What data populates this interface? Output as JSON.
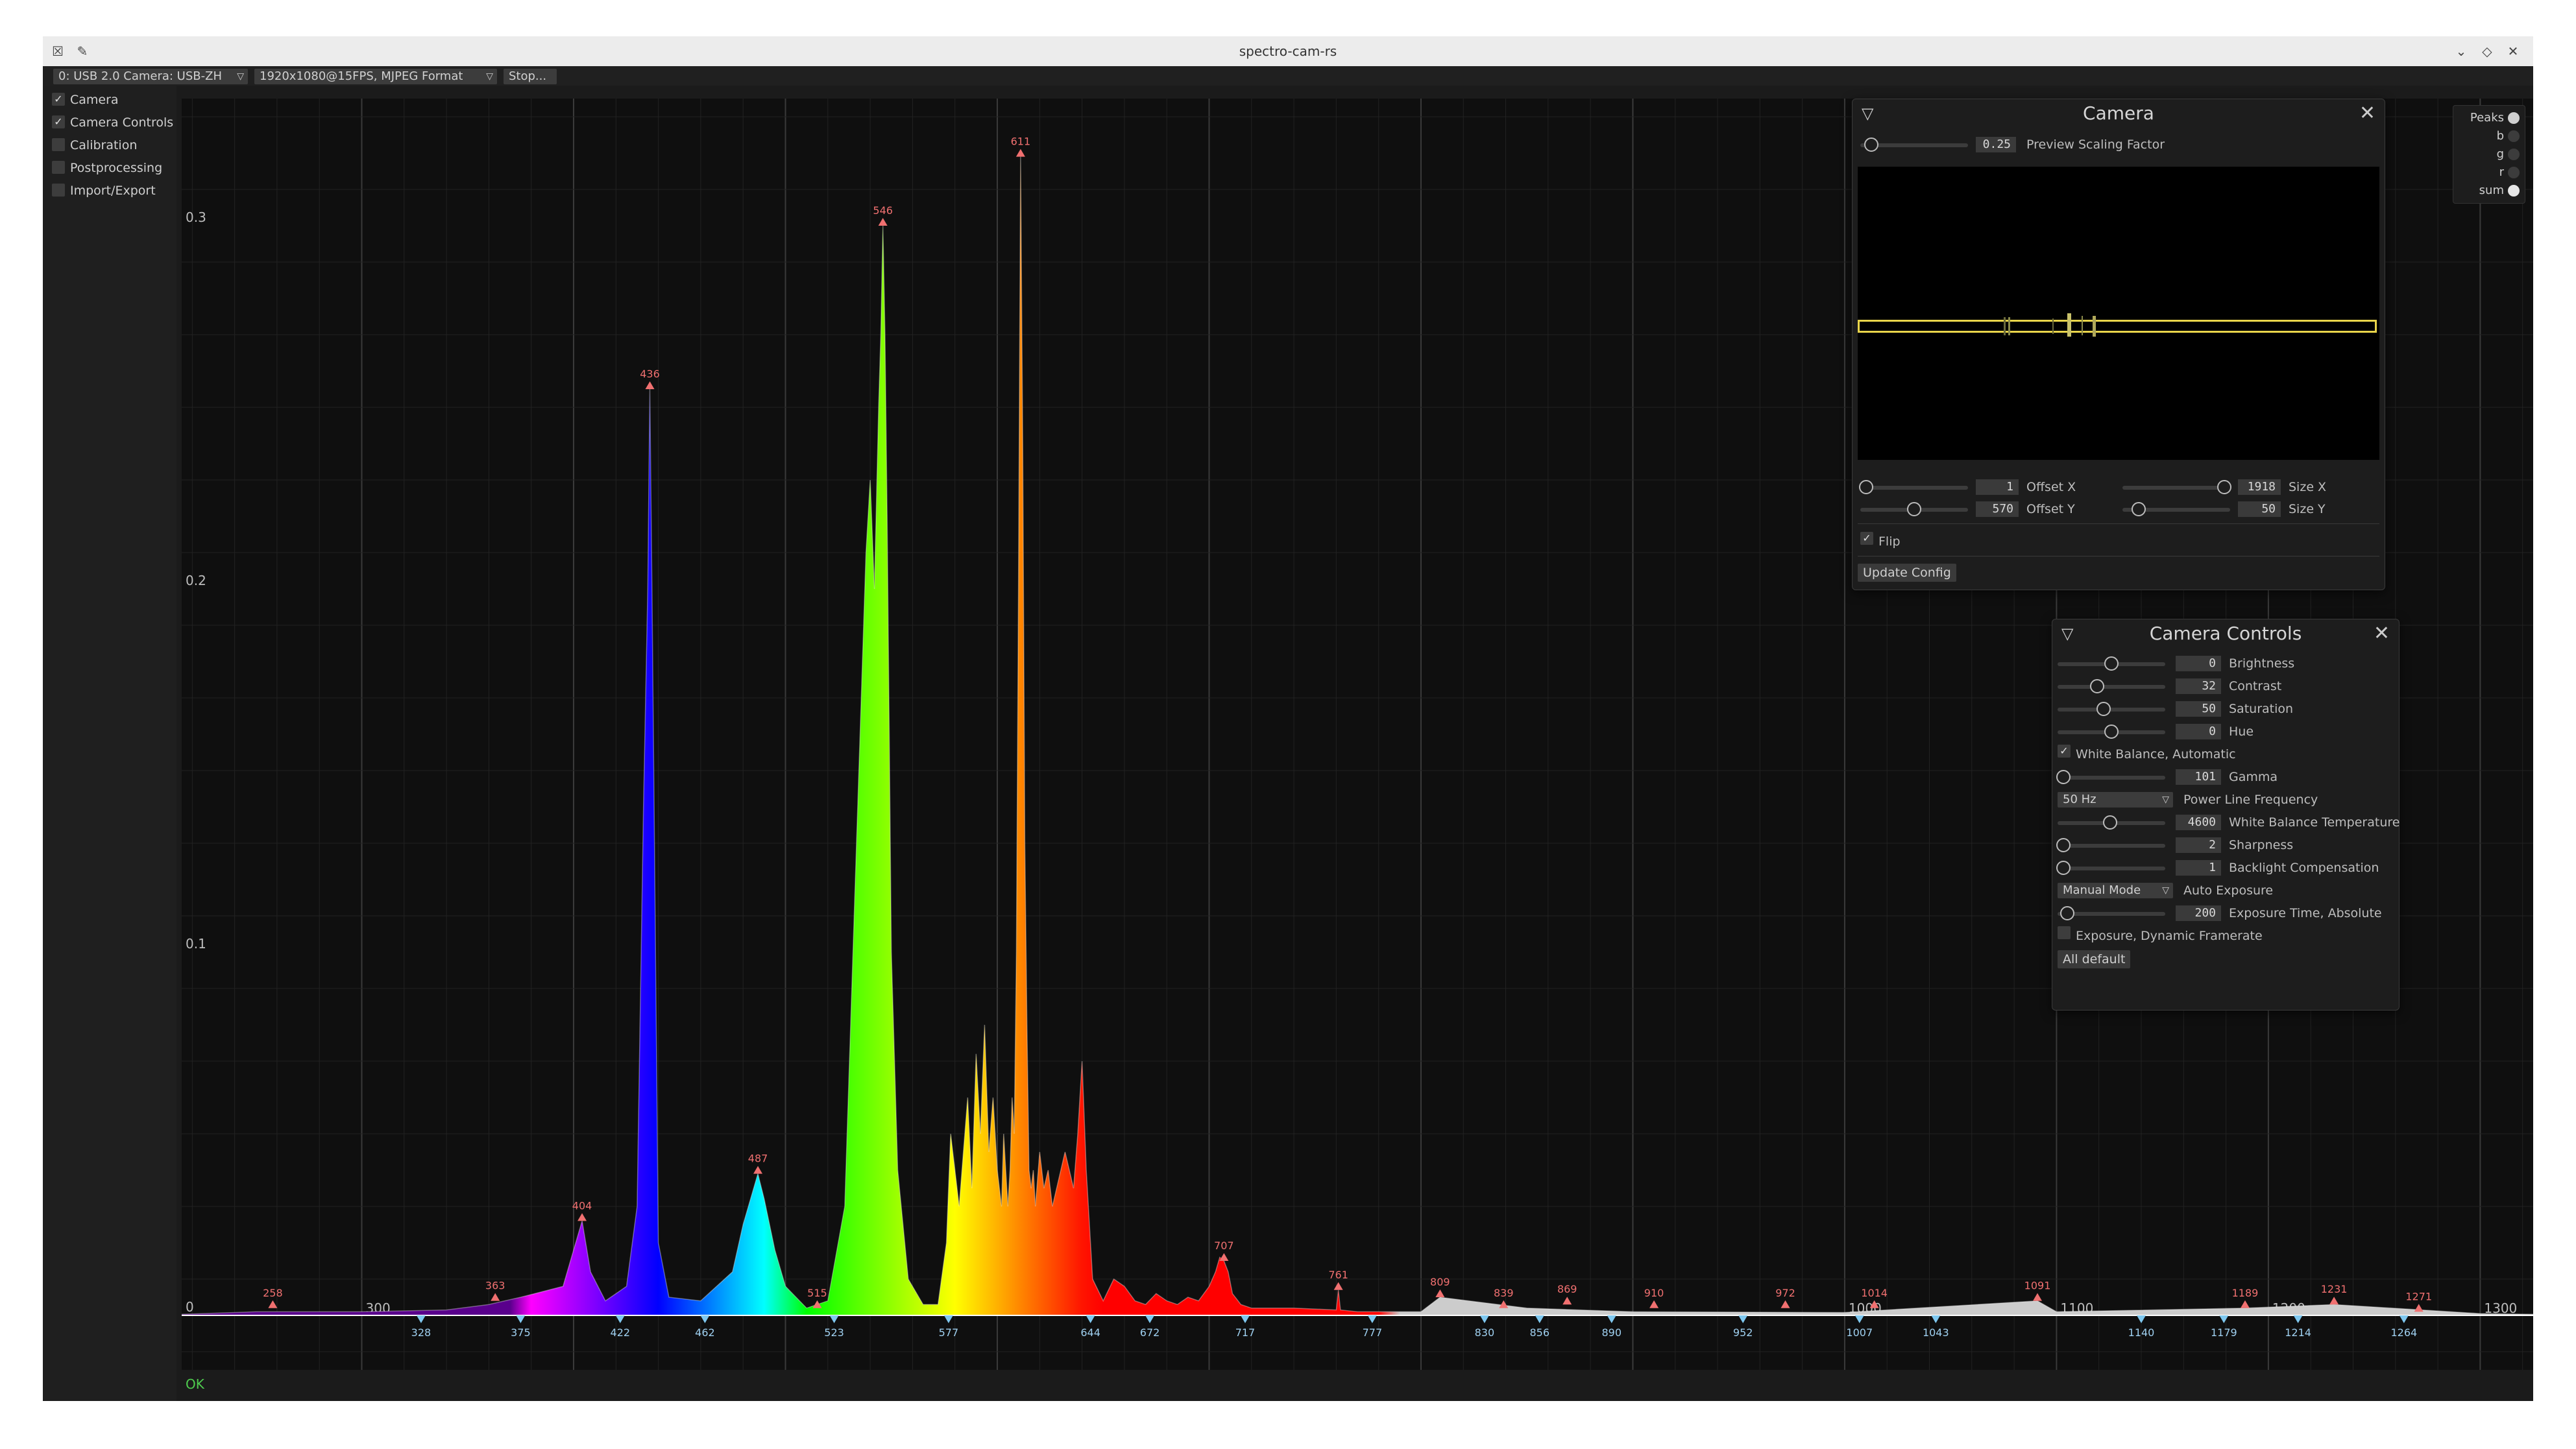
{
  "window": {
    "title": "spectro-cam-rs"
  },
  "toolbar": {
    "camera_select": "0: USB 2.0 Camera: USB-ZH",
    "format_select": "1920x1080@15FPS, MJPEG Format",
    "stop_button": "Stop..."
  },
  "sidebar": {
    "items": [
      {
        "label": "Camera",
        "checked": true
      },
      {
        "label": "Camera Controls",
        "checked": true
      },
      {
        "label": "Calibration",
        "checked": false
      },
      {
        "label": "Postprocessing",
        "checked": false
      },
      {
        "label": "Import/Export",
        "checked": false
      }
    ]
  },
  "status": {
    "text": "OK",
    "color": "#4ecb4e"
  },
  "legend": {
    "items": [
      {
        "label": "Peaks",
        "color": "#cfcfcf"
      },
      {
        "label": "b",
        "color": "#3c3c3c"
      },
      {
        "label": "g",
        "color": "#3c3c3c"
      },
      {
        "label": "r",
        "color": "#3c3c3c"
      },
      {
        "label": "sum",
        "color": "#e6e6e6"
      }
    ]
  },
  "camera_panel": {
    "title": "Camera",
    "preview_scaling_value": "0.25",
    "preview_scaling_label": "Preview Scaling Factor",
    "offset_x_value": "1",
    "offset_x_label": "Offset X",
    "offset_y_value": "570",
    "offset_y_label": "Offset Y",
    "size_x_value": "1918",
    "size_x_label": "Size X",
    "size_y_value": "50",
    "size_y_label": "Size Y",
    "flip_label": "Flip",
    "flip_checked": true,
    "update_button": "Update Config"
  },
  "camera_controls_panel": {
    "title": "Camera Controls",
    "brightness_value": "0",
    "brightness_label": "Brightness",
    "contrast_value": "32",
    "contrast_label": "Contrast",
    "saturation_value": "50",
    "saturation_label": "Saturation",
    "hue_value": "0",
    "hue_label": "Hue",
    "white_balance_auto_label": "White Balance, Automatic",
    "gamma_value": "101",
    "gamma_label": "Gamma",
    "power_line_select": "50 Hz",
    "power_line_label": "Power Line Frequency",
    "wb_temp_value": "4600",
    "wb_temp_label": "White Balance Temperature",
    "sharpness_value": "2",
    "sharpness_label": "Sharpness",
    "backlight_value": "1",
    "backlight_label": "Backlight Compensation",
    "auto_exposure_select": "Manual Mode",
    "auto_exposure_label": "Auto Exposure",
    "exposure_abs_value": "200",
    "exposure_abs_label": "Exposure Time, Absolute",
    "exposure_dynamic_label": "Exposure, Dynamic Framerate",
    "all_default_button": "All default"
  },
  "chart_data": {
    "type": "area",
    "xlim": [
      215,
      1325
    ],
    "ylim": [
      -0.015,
      0.335
    ],
    "x_ticks": [
      "300",
      "1000",
      "1100",
      "1200",
      "1300"
    ],
    "y_ticks": [
      "0",
      "0.1",
      "0.2",
      "0.3"
    ],
    "peaks": [
      {
        "x": 258,
        "y": 0.002
      },
      {
        "x": 363,
        "y": 0.004
      },
      {
        "x": 404,
        "y": 0.026
      },
      {
        "x": 436,
        "y": 0.255
      },
      {
        "x": 487,
        "y": 0.039
      },
      {
        "x": 515,
        "y": 0.002
      },
      {
        "x": 546,
        "y": 0.3
      },
      {
        "x": 611,
        "y": 0.319
      },
      {
        "x": 707,
        "y": 0.015
      },
      {
        "x": 761,
        "y": 0.007
      },
      {
        "x": 809,
        "y": 0.005
      },
      {
        "x": 839,
        "y": 0.002
      },
      {
        "x": 869,
        "y": 0.003
      },
      {
        "x": 910,
        "y": 0.002
      },
      {
        "x": 972,
        "y": 0.002
      },
      {
        "x": 1014,
        "y": 0.002
      },
      {
        "x": 1091,
        "y": 0.004
      },
      {
        "x": 1189,
        "y": 0.002
      },
      {
        "x": 1231,
        "y": 0.003
      },
      {
        "x": 1271,
        "y": 0.001
      }
    ],
    "valleys": [
      {
        "x": 328,
        "y": 0
      },
      {
        "x": 375,
        "y": 0
      },
      {
        "x": 422,
        "y": 0
      },
      {
        "x": 462,
        "y": 0
      },
      {
        "x": 523,
        "y": 0
      },
      {
        "x": 577,
        "y": 0
      },
      {
        "x": 644,
        "y": 0
      },
      {
        "x": 672,
        "y": 0
      },
      {
        "x": 717,
        "y": 0
      },
      {
        "x": 777,
        "y": 0
      },
      {
        "x": 830,
        "y": 0
      },
      {
        "x": 856,
        "y": 0
      },
      {
        "x": 890,
        "y": 0
      },
      {
        "x": 952,
        "y": 0
      },
      {
        "x": 1007,
        "y": 0
      },
      {
        "x": 1043,
        "y": 0
      },
      {
        "x": 1140,
        "y": 0
      },
      {
        "x": 1179,
        "y": 0
      },
      {
        "x": 1214,
        "y": 0
      },
      {
        "x": 1264,
        "y": 0
      }
    ],
    "spectrum": {
      "x": [
        215,
        250,
        300,
        340,
        360,
        375,
        395,
        400,
        404,
        408,
        415,
        425,
        430,
        433,
        435,
        436,
        437,
        438,
        440,
        445,
        460,
        475,
        480,
        485,
        487,
        490,
        495,
        500,
        510,
        520,
        528,
        533,
        538,
        540,
        542,
        544,
        545,
        546,
        547,
        548,
        549,
        550,
        553,
        558,
        565,
        572,
        576,
        578,
        580,
        582,
        584,
        586,
        588,
        590,
        592,
        594,
        596,
        598,
        600,
        602,
        603,
        604,
        605,
        606,
        607,
        608,
        609,
        610,
        611,
        612,
        613,
        614,
        615,
        616,
        617,
        618,
        620,
        622,
        624,
        626,
        628,
        630,
        632,
        634,
        636,
        638,
        640,
        642,
        645,
        650,
        655,
        660,
        665,
        670,
        675,
        680,
        685,
        690,
        695,
        700,
        703,
        705,
        707,
        709,
        711,
        715,
        720,
        725,
        740,
        760,
        761,
        762,
        770,
        800,
        809,
        850,
        900,
        1000,
        1091,
        1100,
        1189,
        1231,
        1300,
        1325
      ],
      "y": [
        0.0003,
        0.001,
        0.001,
        0.0015,
        0.003,
        0.005,
        0.008,
        0.018,
        0.026,
        0.012,
        0.004,
        0.008,
        0.03,
        0.14,
        0.2,
        0.255,
        0.2,
        0.14,
        0.02,
        0.005,
        0.004,
        0.012,
        0.025,
        0.035,
        0.039,
        0.032,
        0.018,
        0.008,
        0.002,
        0.004,
        0.03,
        0.12,
        0.21,
        0.23,
        0.2,
        0.25,
        0.27,
        0.3,
        0.27,
        0.22,
        0.16,
        0.1,
        0.04,
        0.01,
        0.003,
        0.003,
        0.02,
        0.05,
        0.04,
        0.03,
        0.045,
        0.06,
        0.035,
        0.072,
        0.05,
        0.08,
        0.045,
        0.06,
        0.04,
        0.03,
        0.05,
        0.04,
        0.03,
        0.04,
        0.06,
        0.05,
        0.1,
        0.2,
        0.319,
        0.24,
        0.13,
        0.08,
        0.04,
        0.035,
        0.04,
        0.03,
        0.045,
        0.035,
        0.04,
        0.03,
        0.035,
        0.04,
        0.045,
        0.04,
        0.035,
        0.05,
        0.07,
        0.04,
        0.01,
        0.004,
        0.01,
        0.008,
        0.004,
        0.003,
        0.006,
        0.004,
        0.003,
        0.005,
        0.004,
        0.008,
        0.012,
        0.016,
        0.015,
        0.012,
        0.006,
        0.003,
        0.002,
        0.002,
        0.002,
        0.0015,
        0.007,
        0.0015,
        0.001,
        0.001,
        0.005,
        0.002,
        0.001,
        0.0008,
        0.004,
        0.001,
        0.002,
        0.003,
        0.0005,
        0.0003
      ]
    }
  }
}
